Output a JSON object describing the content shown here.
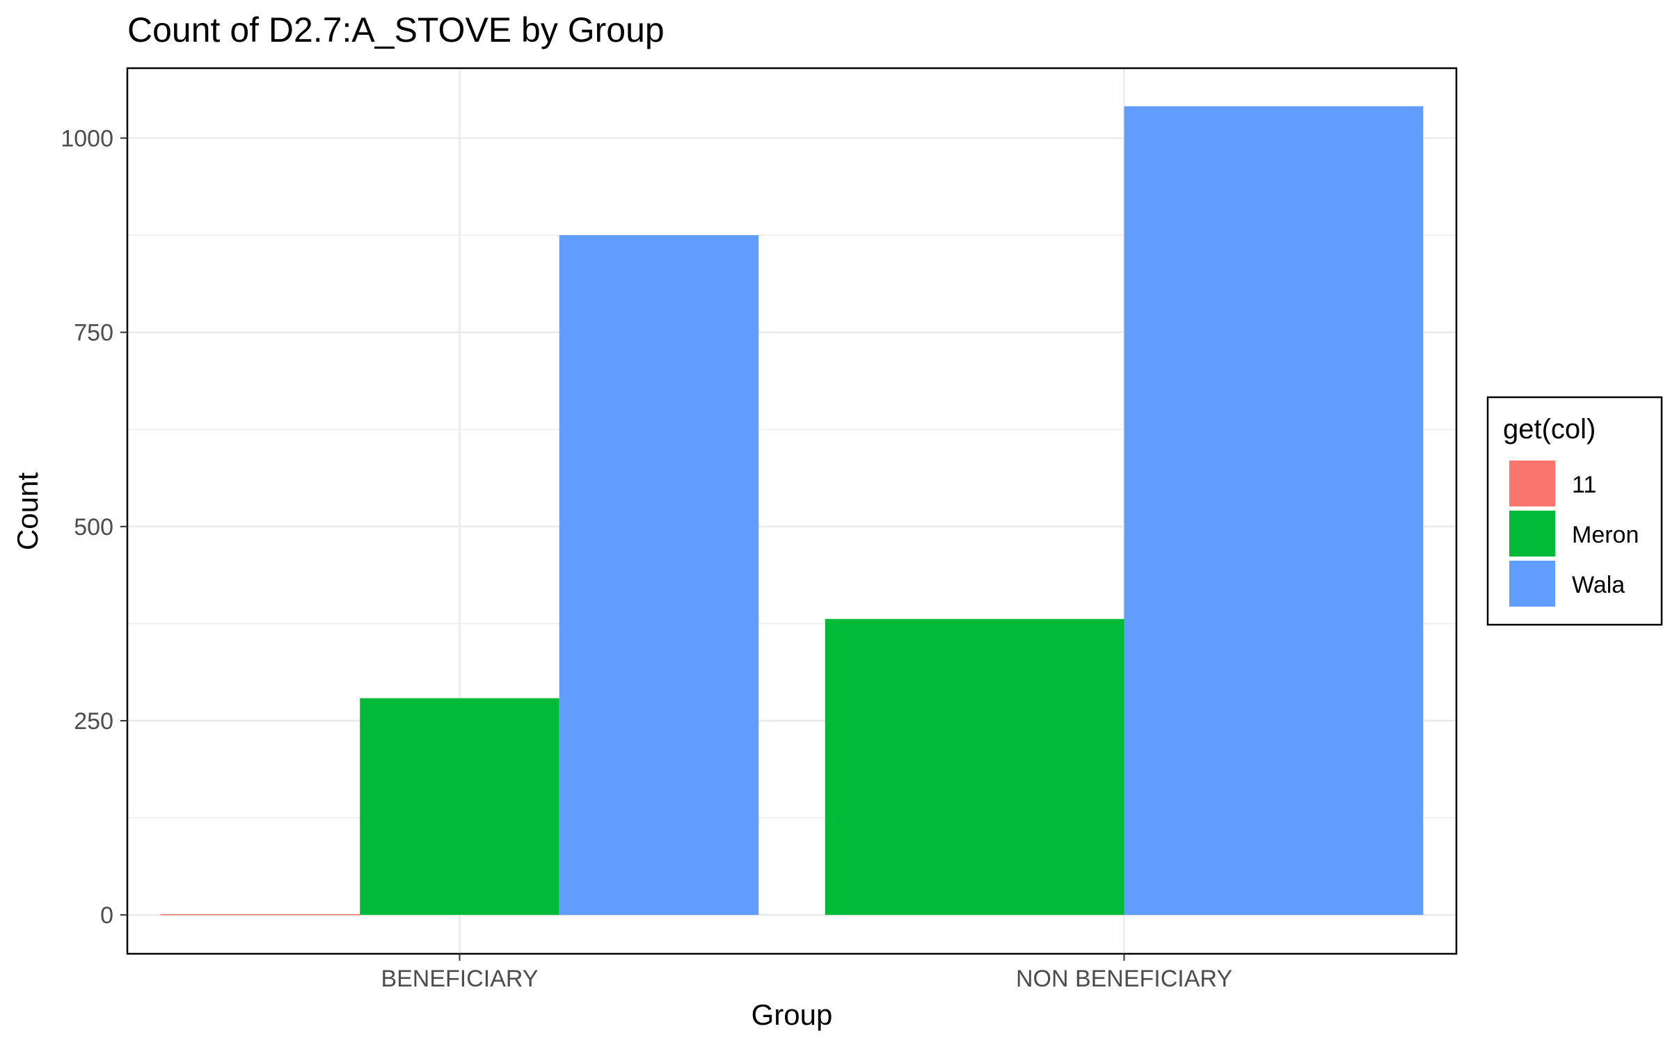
{
  "chart_data": {
    "type": "bar",
    "title": "Count of D2.7:A_STOVE by Group",
    "xlabel": "Group",
    "ylabel": "Count",
    "categories": [
      "BENEFICIARY",
      "NON BENEFICIARY"
    ],
    "ylim": [
      -50,
      1090
    ],
    "yticks": [
      0,
      250,
      500,
      750,
      1000
    ],
    "grid": true,
    "legend": {
      "title": "get(col)",
      "placement": "right"
    },
    "series": [
      {
        "name": "11",
        "color": "#F8766D",
        "values": [
          1,
          null
        ]
      },
      {
        "name": "Meron",
        "color": "#00BA38",
        "values": [
          279,
          381
        ]
      },
      {
        "name": "Wala",
        "color": "#619CFF",
        "values": [
          875,
          1041
        ]
      }
    ]
  }
}
